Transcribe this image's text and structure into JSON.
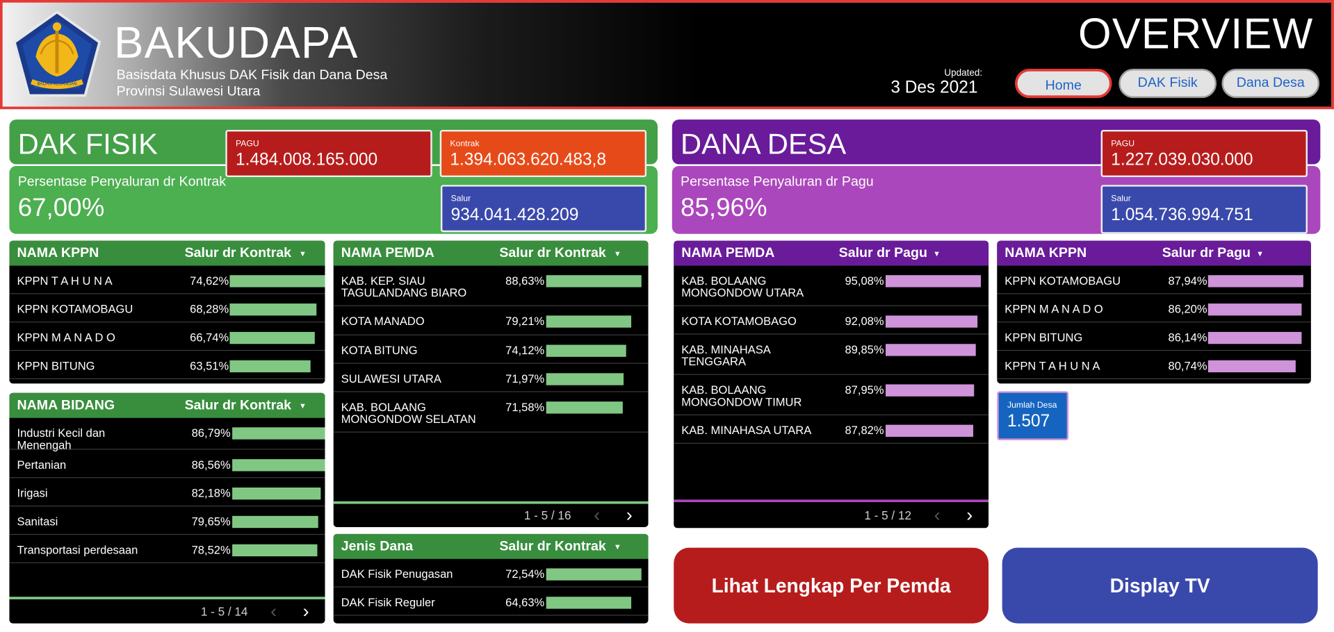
{
  "header": {
    "app_title": "BAKUDAPA",
    "subtitle_line1": "Basisdata Khusus DAK Fisik dan Dana Desa",
    "subtitle_line2": "Provinsi Sulawesi Utara",
    "logo_text": "BADAN KEUANGAN",
    "page_title": "OVERVIEW",
    "updated_label": "Updated:",
    "updated_date": "3 Des 2021"
  },
  "nav": {
    "home": "Home",
    "dak_fisik": "DAK Fisik",
    "dana_desa": "Dana Desa"
  },
  "dak": {
    "title": "DAK FISIK",
    "pagu_label": "PAGU",
    "pagu_value": "1.484.008.165.000",
    "kontrak_label": "Kontrak",
    "kontrak_value": "1.394.063.620.483,8",
    "salur_label": "Salur",
    "salur_value": "934.041.428.209",
    "pct_label": "Persentase Penyaluran dr Kontrak",
    "pct_value": "67,00%"
  },
  "dana": {
    "title": "DANA DESA",
    "pagu_label": "PAGU",
    "pagu_value": "1.227.039.030.000",
    "salur_label": "Salur",
    "salur_value": "1.054.736.994.751",
    "pct_label": "Persentase Penyaluran dr Pagu",
    "pct_value": "85,96%",
    "jumlah_desa_label": "Jumlah Desa",
    "jumlah_desa_value": "1.507"
  },
  "tables": {
    "dak_kppn": {
      "col1": "NAMA KPPN",
      "col2": "Salur dr Kontrak",
      "rows": [
        {
          "name": "KPPN T A H U N A",
          "pct": "74,62%",
          "v": 74.62
        },
        {
          "name": "KPPN KOTAMOBAGU",
          "pct": "68,28%",
          "v": 68.28
        },
        {
          "name": "KPPN M A N A D O",
          "pct": "66,74%",
          "v": 66.74
        },
        {
          "name": "KPPN BITUNG",
          "pct": "63,51%",
          "v": 63.51
        }
      ]
    },
    "dak_bidang": {
      "col1": "NAMA BIDANG",
      "col2": "Salur dr Kontrak",
      "pager": "1 - 5 / 14",
      "rows": [
        {
          "name": "Industri Kecil dan\nMenengah",
          "pct": "86,79%",
          "v": 86.79
        },
        {
          "name": "Pertanian",
          "pct": "86,56%",
          "v": 86.56
        },
        {
          "name": "Irigasi",
          "pct": "82,18%",
          "v": 82.18
        },
        {
          "name": "Sanitasi",
          "pct": "79,65%",
          "v": 79.65
        },
        {
          "name": "Transportasi perdesaan",
          "pct": "78,52%",
          "v": 78.52
        }
      ]
    },
    "dak_pemda": {
      "col1": "NAMA PEMDA",
      "col2": "Salur dr Kontrak",
      "pager": "1 - 5 / 16",
      "rows": [
        {
          "name": "KAB. KEP. SIAU\nTAGULANDANG BIARO",
          "pct": "88,63%",
          "v": 88.63
        },
        {
          "name": "KOTA MANADO",
          "pct": "79,21%",
          "v": 79.21
        },
        {
          "name": "KOTA BITUNG",
          "pct": "74,12%",
          "v": 74.12
        },
        {
          "name": "SULAWESI UTARA",
          "pct": "71,97%",
          "v": 71.97
        },
        {
          "name": "KAB. BOLAANG\nMONGONDOW SELATAN",
          "pct": "71,58%",
          "v": 71.58
        }
      ]
    },
    "dak_jenis": {
      "col1": "Jenis Dana",
      "col2": "Salur dr Kontrak",
      "rows": [
        {
          "name": "DAK Fisik Penugasan",
          "pct": "72,54%",
          "v": 72.54
        },
        {
          "name": "DAK Fisik Reguler",
          "pct": "64,63%",
          "v": 64.63
        }
      ]
    },
    "dana_pemda": {
      "col1": "NAMA PEMDA",
      "col2": "Salur dr Pagu",
      "pager": "1 - 5 / 12",
      "rows": [
        {
          "name": "KAB. BOLAANG\nMONGONDOW UTARA",
          "pct": "95,08%",
          "v": 95.08
        },
        {
          "name": "KOTA KOTAMOBAGO",
          "pct": "92,08%",
          "v": 92.08
        },
        {
          "name": "KAB. MINAHASA\nTENGGARA",
          "pct": "89,85%",
          "v": 89.85
        },
        {
          "name": "KAB. BOLAANG\nMONGONDOW TIMUR",
          "pct": "87,95%",
          "v": 87.95
        },
        {
          "name": "KAB. MINAHASA UTARA",
          "pct": "87,82%",
          "v": 87.82
        }
      ]
    },
    "dana_kppn": {
      "col1": "NAMA KPPN",
      "col2": "Salur dr Pagu",
      "rows": [
        {
          "name": "KPPN KOTAMOBAGU",
          "pct": "87,94%",
          "v": 87.94
        },
        {
          "name": "KPPN M A N A D O",
          "pct": "86,20%",
          "v": 86.2
        },
        {
          "name": "KPPN BITUNG",
          "pct": "86,14%",
          "v": 86.14
        },
        {
          "name": "KPPN T A H U N A",
          "pct": "80,74%",
          "v": 80.74
        }
      ]
    }
  },
  "buttons": {
    "lihat": "Lihat Lengkap Per Pemda",
    "display_tv": "Display TV"
  },
  "colors": {
    "dak_green": "#4caf50",
    "dak_header_green": "#388e3c",
    "dana_purple": "#6a1b9a",
    "dana_light_purple": "#ab47bc",
    "bar_green": "#81c784",
    "bar_purple": "#ce93d8",
    "pagu_red": "#b71c1c",
    "kontrak_orange": "#e64a19",
    "salur_blue": "#3949ab",
    "desa_blue": "#1565c0"
  },
  "icons": {
    "sort": "triangle-down-icon",
    "prev": "chevron-left-icon",
    "next": "chevron-right-icon"
  }
}
